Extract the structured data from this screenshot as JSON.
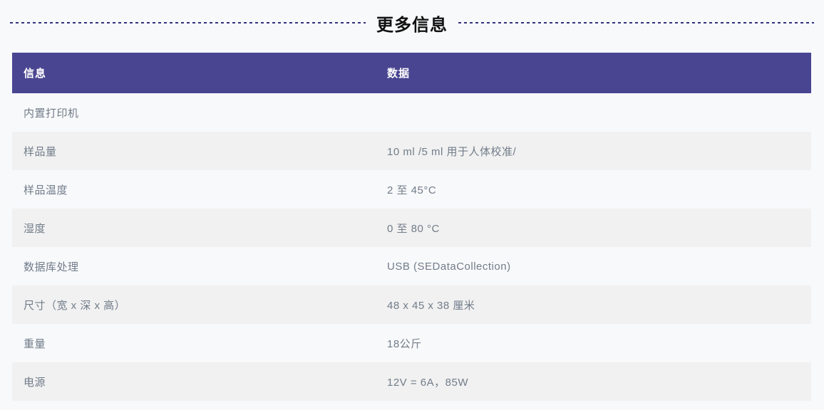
{
  "page": {
    "title": "更多信息",
    "background_color": "#f8f9fb",
    "dash_color": "#32327e",
    "header_color": "#4a4591",
    "row_alt_color": "#f1f1f1",
    "row_text_color": "#717c89"
  },
  "table": {
    "headers": [
      "信息",
      "数据"
    ],
    "rows": [
      {
        "label": "内置打印机",
        "value": ""
      },
      {
        "label": "样品量",
        "value": "10 ml /5 ml 用于人体校准/"
      },
      {
        "label": "样品温度",
        "value": "2 至 45°C"
      },
      {
        "label": "湿度",
        "value": "0 至 80 °C"
      },
      {
        "label": "数据库处理",
        "value": "USB (SEDataCollection)"
      },
      {
        "label": "尺寸（宽 x 深 x 高）",
        "value": "48 x 45 x 38 厘米"
      },
      {
        "label": "重量",
        "value": "18公斤"
      },
      {
        "label": "电源",
        "value": "12V = 6A，85W"
      }
    ]
  }
}
